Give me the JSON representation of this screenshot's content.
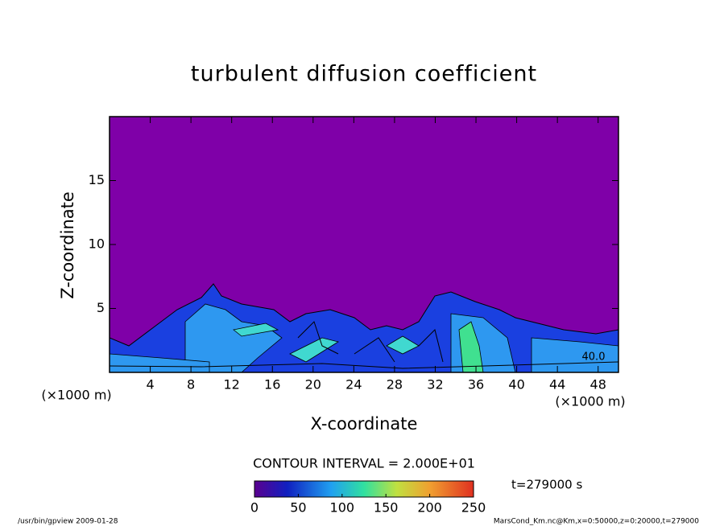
{
  "chart_data": {
    "type": "contour",
    "title": "turbulent diffusion coefficient",
    "x_label": "X-coordinate",
    "y_label": "Z-coordinate",
    "x_unit": "(×1000 m)",
    "y_unit": "(×1000 m)",
    "xlim": [
      0,
      50
    ],
    "xticks": [
      4,
      8,
      12,
      16,
      20,
      24,
      28,
      32,
      36,
      40,
      44,
      48
    ],
    "ylim": [
      0,
      20
    ],
    "yticks": [
      5,
      10,
      15
    ],
    "contour_label": "40.0",
    "contour_interval": "CONTOUR INTERVAL = 2.000E+01",
    "time_label": "t=279000 s",
    "clim": [
      0,
      250
    ],
    "cticks": [
      0,
      50,
      100,
      150,
      200,
      250
    ],
    "footer_left": "/usr/bin/gpview  2009-01-28",
    "footer_right": "MarsCond_Km.nc@Km,x=0:50000,z=0:20000,t=279000"
  }
}
